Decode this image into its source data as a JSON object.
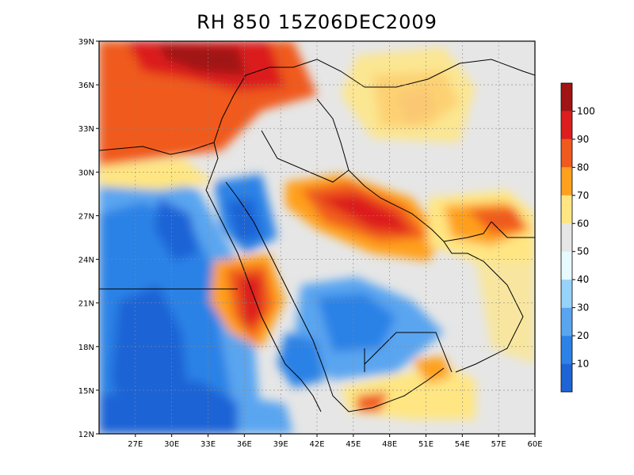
{
  "title": "RH 850 15Z06DEC2009",
  "map": {
    "lat_labels": [
      "12N",
      "15N",
      "18N",
      "21N",
      "24N",
      "27N",
      "30N",
      "33N",
      "36N",
      "39N"
    ],
    "lon_labels": [
      "27E",
      "30E",
      "33E",
      "36E",
      "39E",
      "42E",
      "45E",
      "48E",
      "51E",
      "54E",
      "57E",
      "60E"
    ],
    "lat_range": [
      12,
      39
    ],
    "lon_range": [
      24,
      60
    ],
    "gridlines": "dotted"
  },
  "colorbar": {
    "labels": [
      "10",
      "20",
      "30",
      "40",
      "50",
      "60",
      "70",
      "80",
      "90",
      "100"
    ],
    "colors": [
      "#1e64d6",
      "#2c82e6",
      "#5aa5f0",
      "#96d2fa",
      "#e6faff",
      "#e6e6e6",
      "#ffe682",
      "#ffa01e",
      "#f05a1e",
      "#dc1e1e",
      "#a01414"
    ]
  }
}
